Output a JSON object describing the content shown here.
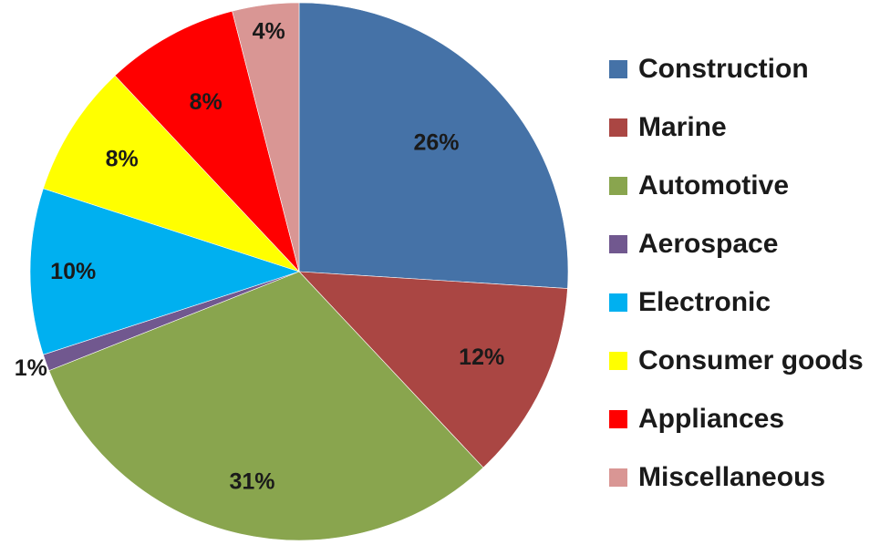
{
  "chart_data": {
    "type": "pie",
    "title": "",
    "legend_position": "right",
    "slices": [
      {
        "name": "Construction",
        "value": 26,
        "label": "26%",
        "color": "#4572A7"
      },
      {
        "name": "Marine",
        "value": 12,
        "label": "12%",
        "color": "#AA4643"
      },
      {
        "name": "Automotive",
        "value": 31,
        "label": "31%",
        "color": "#89A54E"
      },
      {
        "name": "Aerospace",
        "value": 1,
        "label": "1%",
        "color": "#71588F"
      },
      {
        "name": "Electronic",
        "value": 10,
        "label": "10%",
        "color": "#00B0F0"
      },
      {
        "name": "Consumer goods",
        "value": 8,
        "label": "8%",
        "color": "#FFFF00"
      },
      {
        "name": "Appliances",
        "value": 8,
        "label": "8%",
        "color": "#FF0000"
      },
      {
        "name": "Miscellaneous",
        "value": 4,
        "label": "4%",
        "color": "#D99694"
      }
    ]
  }
}
